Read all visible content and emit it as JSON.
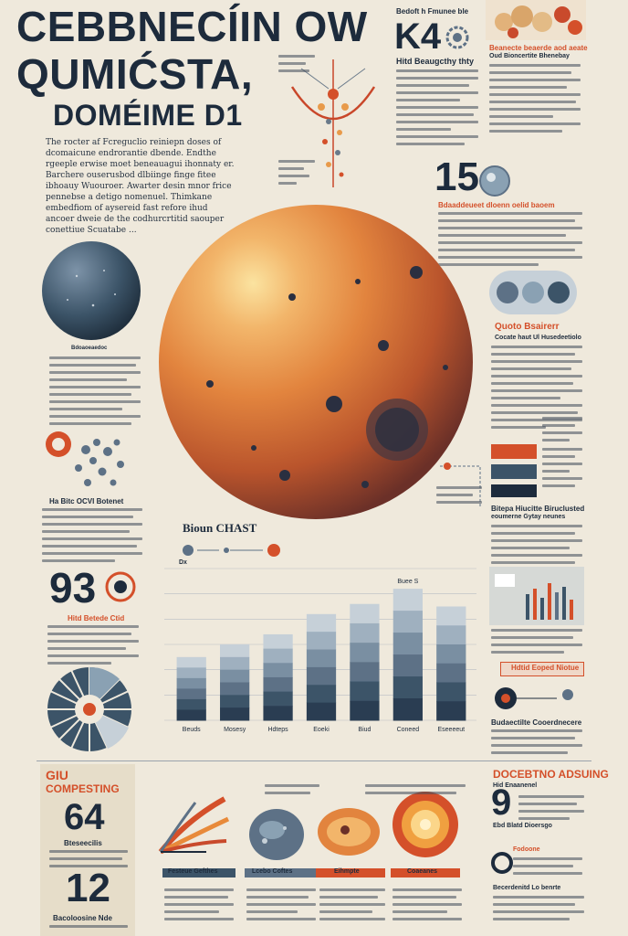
{
  "title": {
    "line1": "CEBBNECÍIN OW",
    "line2": "QUMIĆSTA,",
    "line3": "DOMÉIME D1"
  },
  "header_right": {
    "kicker": "Bedoft h Fmunee ble",
    "number": "K4",
    "subtitle": "Hitd Beaugcthy thty"
  },
  "lead_text": "The rocter af Fcreguclio reiniepn doses of dcomaicune endrorantie dbende. Endthe rgeeple erwise moet beneauagui ihonnaty er. Barchere ouserusbod dlbiinge finge fitee ibhoauy Wuouroer. Awarter desin mnor frice pennebse a detigo nomenuel. Thimkane embedfiom of aysereid fast refore ihud ancoer dweie de the codhurcrtitid saouper conettiue Scuatabe ...",
  "top_right_box": {
    "title": "Beanecte beaerde aod aeate",
    "subtitle": "Oud Bioncertite Bhenebay"
  },
  "stat_15": {
    "number": "15",
    "caption": "Bdaaddeueet dloenn oelid baoem"
  },
  "planet_caption": "Bdoaoeaedoc",
  "left_cells": {
    "label": "Ha Bitc OCVI Botenet"
  },
  "chart_heading": {
    "title": "Bioun CHAST",
    "sub": "Dx"
  },
  "quarter_label": "Quoto Bsairerr",
  "quarter_sub": "Cocate haut Ul Husedeetiolo",
  "stat_93": {
    "number": "93",
    "caption": "Hitd Betede Ctid"
  },
  "right_mid": {
    "title": "Bitepa Hiucitte Biruclusted",
    "sub": "eoumerne Gytay neunes"
  },
  "right_lower": {
    "label": "Hdtid Eoped Niotue",
    "caption": "Budaectilte Cooerdnecere"
  },
  "chart_data": {
    "type": "bar",
    "categories": [
      "Beuds",
      "Mosesy",
      "Hdteps",
      "Eoeki",
      "Biud",
      "Coneed",
      "Eseeeeut"
    ],
    "values": [
      25,
      30,
      34,
      42,
      46,
      52,
      45
    ],
    "ylim": [
      0,
      60
    ],
    "annotation": "Buee S"
  },
  "competing": {
    "title_line1": "GIU",
    "title_line2": "COMPESTING",
    "number1": "64",
    "number1_caption": "Bteseecilis",
    "number2": "12",
    "number2_caption": "Bacoloosine Nde"
  },
  "bottom_items": [
    {
      "label": "Festeue Gefthes"
    },
    {
      "label": "Lcebo Coftes"
    },
    {
      "label": "Eihmpte"
    },
    {
      "label": "Coaeanes"
    }
  ],
  "bottom_right": {
    "title": "DOCEBTNO ADSUING",
    "sub": "Hid Enaanenel",
    "number": "9",
    "caption1": "Ebd Blatd Dioersgo",
    "caption2": "Fodoone",
    "caption3": "Becerdenitd Lo benrte"
  },
  "colors": {
    "background": "#efe9dc",
    "navy": "#1d2b3c",
    "orange": "#d4502a",
    "slate": "#5d7186"
  }
}
